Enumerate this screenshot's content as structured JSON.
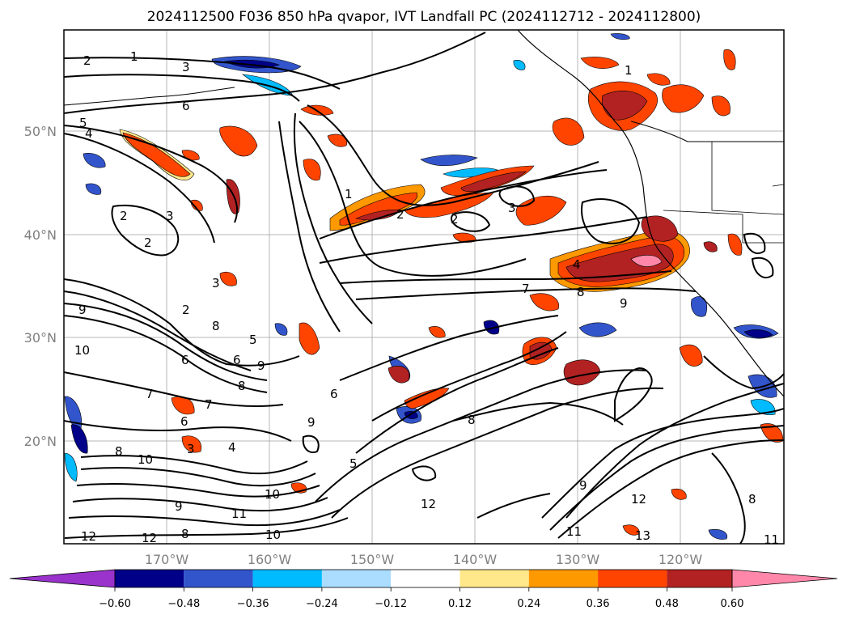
{
  "title": "2024112500 F036 850 hPa qvapor, IVT Landfall PC (2024112712 - 2024112800)",
  "axes": {
    "lon_labels": [
      "170°W",
      "160°W",
      "150°W",
      "140°W",
      "130°W",
      "120°W"
    ],
    "lat_labels": [
      "50°N",
      "40°N",
      "30°N",
      "20°N"
    ]
  },
  "colorbar": {
    "tick_labels": [
      "−0.60",
      "−0.48",
      "−0.36",
      "−0.24",
      "−0.12",
      "0.12",
      "0.24",
      "0.36",
      "0.48",
      "0.60"
    ],
    "colors": [
      "#9933cc",
      "#000088",
      "#3355cc",
      "#00bbff",
      "#aaddff",
      "#ffffff",
      "#ffe88a",
      "#ff9900",
      "#ff4400",
      "#b22222",
      "#ff88aa"
    ],
    "extend": "both"
  },
  "contour_labels": [
    {
      "text": "2"
    },
    {
      "text": "1"
    },
    {
      "text": "3"
    },
    {
      "text": "6"
    },
    {
      "text": "5"
    },
    {
      "text": "4"
    },
    {
      "text": "1"
    },
    {
      "text": "2"
    },
    {
      "text": "2"
    },
    {
      "text": "3"
    },
    {
      "text": "3"
    },
    {
      "text": "2"
    },
    {
      "text": "3"
    },
    {
      "text": "2"
    },
    {
      "text": "4"
    },
    {
      "text": "8"
    },
    {
      "text": "7"
    },
    {
      "text": "9"
    },
    {
      "text": "9"
    },
    {
      "text": "2"
    },
    {
      "text": "8"
    },
    {
      "text": "10"
    },
    {
      "text": "6"
    },
    {
      "text": "6"
    },
    {
      "text": "5"
    },
    {
      "text": "9"
    },
    {
      "text": "8"
    },
    {
      "text": "7"
    },
    {
      "text": "6"
    },
    {
      "text": "9"
    },
    {
      "text": "8"
    },
    {
      "text": "7"
    },
    {
      "text": "3"
    },
    {
      "text": "4"
    },
    {
      "text": "10"
    },
    {
      "text": "11"
    },
    {
      "text": "12"
    },
    {
      "text": "9"
    },
    {
      "text": "5"
    },
    {
      "text": "10"
    },
    {
      "text": "8"
    },
    {
      "text": "10"
    },
    {
      "text": "12"
    },
    {
      "text": "12"
    },
    {
      "text": "12"
    },
    {
      "text": "8"
    },
    {
      "text": "9"
    },
    {
      "text": "11"
    },
    {
      "text": "13"
    },
    {
      "text": "11"
    },
    {
      "text": "8"
    },
    {
      "text": "1"
    },
    {
      "text": "6"
    }
  ]
}
